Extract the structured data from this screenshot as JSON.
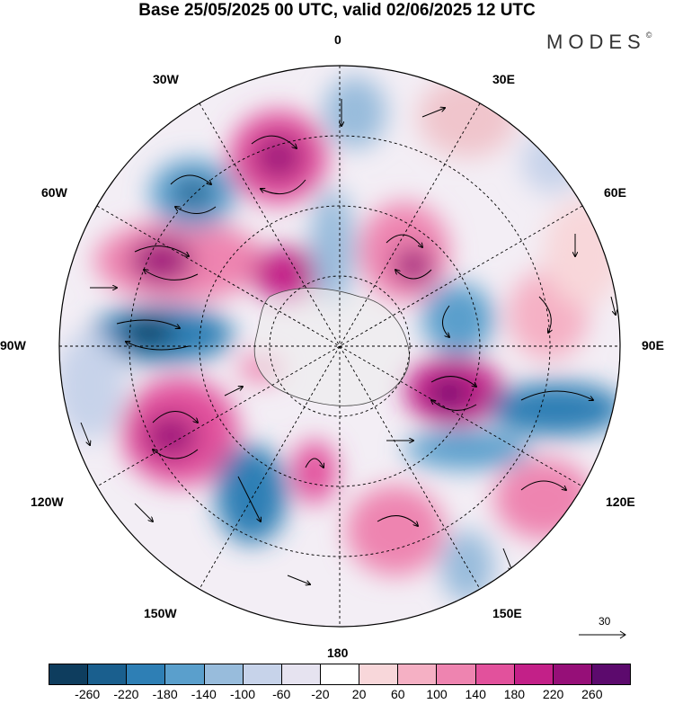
{
  "header": {
    "title": "Base 25/05/2025 00 UTC, valid 02/06/2025 12 UTC",
    "brand": "MODES",
    "brand_mark": "©"
  },
  "map": {
    "projection": "south polar stereographic",
    "meridian_labels": {
      "m0": "0",
      "m30e": "30E",
      "m60e": "60E",
      "m90e": "90E",
      "m120e": "120E",
      "m150e": "150E",
      "m180": "180",
      "m150w": "150W",
      "m120w": "120W",
      "m90w": "90W",
      "m60w": "60W",
      "m30w": "30W"
    },
    "vector_reference": "30",
    "background_color": "#f3eef5"
  },
  "colorbar": {
    "colors": [
      "#0e3d5e",
      "#1a5f8e",
      "#2e7fb5",
      "#5a9fcc",
      "#98bcdc",
      "#c7d3ea",
      "#e6e3f0",
      "#ffffff",
      "#f8d7da",
      "#f5b0c4",
      "#ee84b0",
      "#e2519c",
      "#c32088",
      "#960f78",
      "#5c0a6d"
    ],
    "tick_labels": [
      "-260",
      "-220",
      "-180",
      "-140",
      "-100",
      "-60",
      "-20",
      "20",
      "60",
      "100",
      "140",
      "180",
      "220",
      "260"
    ]
  }
}
